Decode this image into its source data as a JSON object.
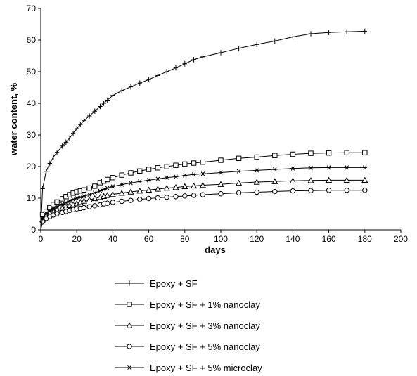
{
  "chart_data": {
    "type": "line",
    "title": "",
    "xlabel": "days",
    "ylabel": "water content, %",
    "xlim": [
      0,
      200
    ],
    "ylim": [
      0,
      70
    ],
    "xticks": [
      "0",
      "20",
      "40",
      "60",
      "80",
      "100",
      "120",
      "140",
      "160",
      "180",
      "200"
    ],
    "yticks": [
      "0",
      "10",
      "20",
      "30",
      "40",
      "50",
      "60",
      "70"
    ],
    "grid": false,
    "legend_position": "bottom",
    "series": [
      {
        "name": "Epoxy + SF",
        "marker": "plus",
        "x": [
          0,
          1,
          3,
          5,
          7,
          9,
          12,
          14,
          16,
          18,
          20,
          22,
          24,
          27,
          30,
          33,
          35,
          37,
          40,
          45,
          50,
          55,
          60,
          65,
          70,
          75,
          80,
          85,
          90,
          100,
          110,
          120,
          130,
          140,
          150,
          160,
          170,
          180
        ],
        "y": [
          0,
          13,
          18.5,
          21,
          23,
          24.5,
          26.5,
          27.7,
          29,
          30.5,
          32,
          33.3,
          34.5,
          36,
          37.5,
          39,
          40,
          41,
          42.5,
          44,
          45.2,
          46.4,
          47.5,
          48.8,
          50,
          51.2,
          52.5,
          53.8,
          54.7,
          56,
          57.4,
          58.6,
          59.7,
          61,
          62,
          62.4,
          62.6,
          62.8
        ]
      },
      {
        "name": "Epoxy + SF + 1% nanoclay",
        "marker": "square",
        "x": [
          0,
          1,
          3,
          5,
          7,
          9,
          12,
          14,
          16,
          18,
          20,
          22,
          24,
          27,
          30,
          33,
          35,
          37,
          40,
          45,
          50,
          55,
          60,
          65,
          70,
          75,
          80,
          85,
          90,
          100,
          110,
          120,
          130,
          140,
          150,
          160,
          170,
          180
        ],
        "y": [
          0,
          4.8,
          5.8,
          7,
          8,
          8.8,
          9.8,
          10.5,
          11.1,
          11.6,
          12,
          12.3,
          12.6,
          13.2,
          13.8,
          14.9,
          15.4,
          15.9,
          16.5,
          17.3,
          18,
          18.6,
          19.1,
          19.6,
          20,
          20.4,
          20.8,
          21.1,
          21.4,
          22,
          22.6,
          23,
          23.5,
          23.9,
          24.2,
          24.3,
          24.4,
          24.4
        ]
      },
      {
        "name": "Epoxy + SF + 3% nanoclay",
        "marker": "triangle",
        "x": [
          0,
          1,
          3,
          5,
          7,
          9,
          12,
          14,
          16,
          18,
          20,
          22,
          24,
          27,
          30,
          33,
          35,
          37,
          40,
          45,
          50,
          55,
          60,
          65,
          70,
          75,
          80,
          85,
          90,
          100,
          110,
          120,
          130,
          140,
          150,
          160,
          170,
          180
        ],
        "y": [
          0,
          3.2,
          4.5,
          5.2,
          5.8,
          6.3,
          6.9,
          7.3,
          7.7,
          8,
          8.3,
          8.7,
          9.1,
          9.5,
          9.9,
          10.3,
          10.6,
          10.9,
          11.2,
          11.6,
          12,
          12.3,
          12.6,
          12.9,
          13.2,
          13.4,
          13.7,
          13.9,
          14.1,
          14.4,
          14.8,
          15.1,
          15.3,
          15.5,
          15.6,
          15.7,
          15.7,
          15.7
        ]
      },
      {
        "name": "Epoxy + SF + 5% nanoclay",
        "marker": "circle",
        "x": [
          0,
          1,
          3,
          5,
          7,
          9,
          12,
          14,
          16,
          18,
          20,
          22,
          24,
          27,
          30,
          33,
          35,
          37,
          40,
          45,
          50,
          55,
          60,
          65,
          70,
          75,
          80,
          85,
          90,
          100,
          110,
          120,
          130,
          140,
          150,
          160,
          170,
          180
        ],
        "y": [
          0,
          2.5,
          3.6,
          4.2,
          4.7,
          5.1,
          5.5,
          5.8,
          6.1,
          6.4,
          6.6,
          6.8,
          7,
          7.3,
          7.6,
          7.9,
          8.2,
          8.4,
          8.7,
          9,
          9.3,
          9.6,
          9.9,
          10.1,
          10.3,
          10.5,
          10.7,
          10.9,
          11.1,
          11.4,
          11.7,
          11.9,
          12.1,
          12.3,
          12.4,
          12.5,
          12.5,
          12.5
        ]
      },
      {
        "name": "Epoxy + SF + 5% microclay",
        "marker": "asterisk",
        "x": [
          0,
          1,
          3,
          5,
          7,
          9,
          12,
          14,
          16,
          18,
          20,
          22,
          24,
          27,
          30,
          33,
          35,
          37,
          40,
          45,
          50,
          55,
          60,
          65,
          70,
          75,
          80,
          85,
          90,
          100,
          110,
          120,
          130,
          140,
          150,
          160,
          170,
          180
        ],
        "y": [
          0,
          3.8,
          5.2,
          6,
          6.8,
          7.4,
          8.1,
          8.6,
          9.1,
          9.6,
          10,
          10.3,
          10.6,
          11.1,
          11.7,
          12.3,
          12.8,
          13.2,
          13.7,
          14.3,
          14.8,
          15.3,
          15.7,
          16.1,
          16.5,
          16.8,
          17.2,
          17.5,
          17.7,
          18.1,
          18.5,
          18.8,
          19.1,
          19.4,
          19.6,
          19.7,
          19.7,
          19.7
        ]
      }
    ]
  }
}
